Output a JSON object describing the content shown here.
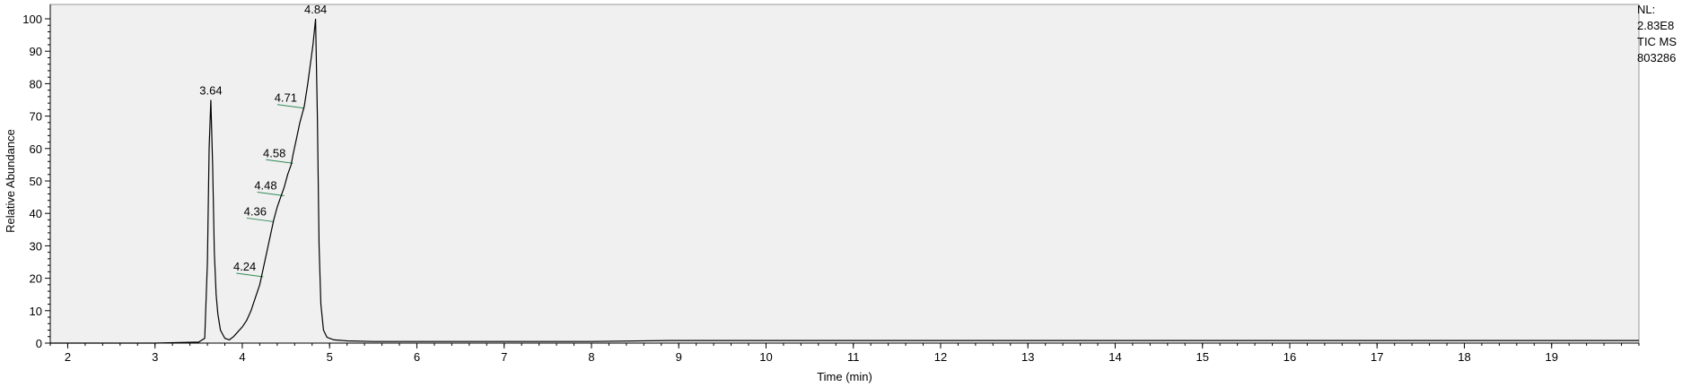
{
  "chart_data": {
    "type": "line",
    "xlabel": "Time (min)",
    "ylabel": "Relative Abundance",
    "xlim": [
      1.8,
      20.0
    ],
    "ylim": [
      0,
      100
    ],
    "xticks": [
      "2",
      "3",
      "4",
      "5",
      "6",
      "7",
      "8",
      "9",
      "10",
      "11",
      "12",
      "13",
      "14",
      "15",
      "16",
      "17",
      "18",
      "19"
    ],
    "yticks": [
      "0",
      "10",
      "20",
      "30",
      "40",
      "50",
      "60",
      "70",
      "80",
      "90",
      "100"
    ],
    "grid": false,
    "series": [
      {
        "x": [
          1.8,
          3.0,
          3.5,
          3.57,
          3.6,
          3.62,
          3.64,
          3.66,
          3.68,
          3.7,
          3.72,
          3.75,
          3.8,
          3.85,
          3.9,
          3.95,
          4.0,
          4.05,
          4.1,
          4.15,
          4.2,
          4.24,
          4.28,
          4.32,
          4.36,
          4.4,
          4.44,
          4.48,
          4.52,
          4.56,
          4.58,
          4.62,
          4.66,
          4.71,
          4.75,
          4.78,
          4.81,
          4.84,
          4.86,
          4.88,
          4.9,
          4.93,
          4.97,
          5.05,
          5.2,
          5.5,
          6.0,
          7.0,
          8.0,
          8.9,
          10.0,
          20.0
        ],
        "y": [
          0,
          0,
          0.3,
          1.5,
          25,
          60,
          75,
          55,
          28,
          15,
          9,
          4,
          1.5,
          1.0,
          2.0,
          3.5,
          5,
          7,
          10,
          14,
          18,
          23,
          28,
          33,
          38,
          42,
          45,
          48,
          52,
          55,
          58,
          63,
          68,
          73,
          80,
          86,
          92,
          100,
          70,
          30,
          12,
          4,
          1.8,
          1.0,
          0.7,
          0.5,
          0.5,
          0.5,
          0.5,
          0.8,
          0.8,
          0.8
        ]
      }
    ],
    "peak_labels": [
      {
        "label": "3.64",
        "x": 3.64,
        "y": 75
      },
      {
        "label": "4.84",
        "x": 4.84,
        "y": 100
      },
      {
        "label": "4.71",
        "x": 4.71,
        "y": 73
      },
      {
        "label": "4.58",
        "x": 4.58,
        "y": 56
      },
      {
        "label": "4.48",
        "x": 4.48,
        "y": 46
      },
      {
        "label": "4.36",
        "x": 4.36,
        "y": 38
      },
      {
        "label": "4.24",
        "x": 4.24,
        "y": 21
      }
    ]
  },
  "side_info": {
    "nl_label": "NL:",
    "nl_value": "2.83E8",
    "trace": "TIC  MS",
    "file_id": "803286"
  },
  "colors": {
    "plot_background": "#f0f0f0",
    "trace": "#000000",
    "peak_marker": "#2e8b57"
  }
}
